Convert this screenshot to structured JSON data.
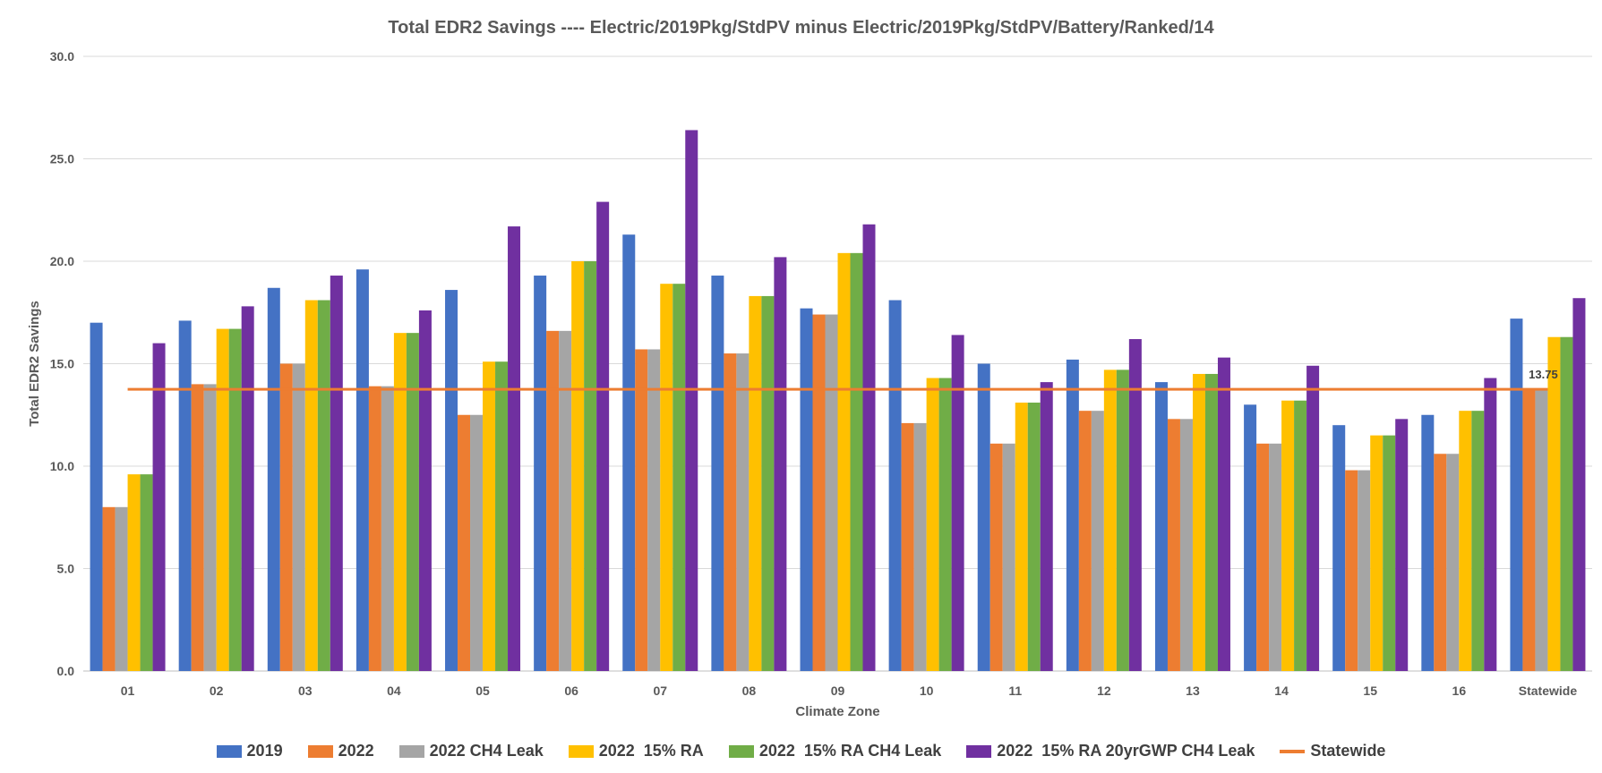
{
  "chart_data": {
    "type": "bar",
    "title": "Total  EDR2 Savings ---- Electric/2019Pkg/StdPV  minus  Electric/2019Pkg/StdPV/Battery/Ranked/14",
    "xlabel": "Climate Zone",
    "ylabel": "Total EDR2 Savings",
    "ylim": [
      0,
      30
    ],
    "yticks": [
      "0.0",
      "5.0",
      "10.0",
      "15.0",
      "20.0",
      "25.0",
      "30.0"
    ],
    "grid": true,
    "legend_position": "bottom",
    "categories": [
      "01",
      "02",
      "03",
      "04",
      "05",
      "06",
      "07",
      "08",
      "09",
      "10",
      "11",
      "12",
      "13",
      "14",
      "15",
      "16",
      "Statewide"
    ],
    "series": [
      {
        "name": "2019",
        "color": "#4472C4",
        "values": [
          17.0,
          17.1,
          18.7,
          19.6,
          18.6,
          19.3,
          21.3,
          19.3,
          17.7,
          18.1,
          15.0,
          15.2,
          14.1,
          13.0,
          12.0,
          12.5,
          17.2
        ]
      },
      {
        "name": "2022",
        "color": "#ED7D31",
        "values": [
          8.0,
          14.0,
          15.0,
          13.9,
          12.5,
          16.6,
          15.7,
          15.5,
          17.4,
          12.1,
          11.1,
          12.7,
          12.3,
          11.1,
          9.8,
          10.6,
          13.8
        ]
      },
      {
        "name": "2022 CH4 Leak",
        "color": "#A5A5A5",
        "values": [
          8.0,
          14.0,
          15.0,
          13.9,
          12.5,
          16.6,
          15.7,
          15.5,
          17.4,
          12.1,
          11.1,
          12.7,
          12.3,
          11.1,
          9.8,
          10.6,
          13.8
        ]
      },
      {
        "name": "2022  15% RA",
        "color": "#FFC000",
        "values": [
          9.6,
          16.7,
          18.1,
          16.5,
          15.1,
          20.0,
          18.9,
          18.3,
          20.4,
          14.3,
          13.1,
          14.7,
          14.5,
          13.2,
          11.5,
          12.7,
          16.3
        ]
      },
      {
        "name": "2022  15% RA CH4 Leak",
        "color": "#70AD47",
        "values": [
          9.6,
          16.7,
          18.1,
          16.5,
          15.1,
          20.0,
          18.9,
          18.3,
          20.4,
          14.3,
          13.1,
          14.7,
          14.5,
          13.2,
          11.5,
          12.7,
          16.3
        ]
      },
      {
        "name": "2022  15% RA 20yrGWP CH4 Leak",
        "color": "#7030A0",
        "values": [
          16.0,
          17.8,
          19.3,
          17.6,
          21.7,
          22.9,
          26.4,
          20.2,
          21.8,
          16.4,
          14.1,
          16.2,
          15.3,
          14.9,
          12.3,
          14.3,
          18.2
        ]
      }
    ],
    "reference_line": {
      "name": "Statewide",
      "color": "#ED7D31",
      "value": 13.75,
      "label": "13.75"
    }
  }
}
